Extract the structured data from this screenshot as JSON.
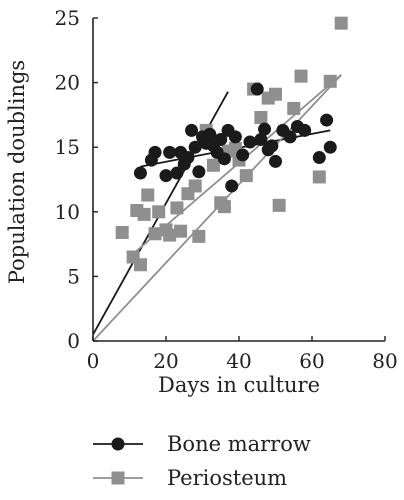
{
  "chart_data": {
    "type": "scatter",
    "title": "",
    "xlabel": "Days in culture",
    "ylabel": "Population doublings",
    "xlim": [
      0,
      80
    ],
    "ylim": [
      0,
      25
    ],
    "x_ticks": [
      0,
      20,
      40,
      60,
      80
    ],
    "y_ticks": [
      0,
      5,
      10,
      15,
      20,
      25
    ],
    "x_tick_labels": [
      "0",
      "20",
      "40",
      "60",
      "80"
    ],
    "y_tick_labels": [
      "0",
      "5",
      "10",
      "15",
      "20",
      "25"
    ],
    "grid": false,
    "legend_position": "bottom",
    "series": [
      {
        "name": "Bone marrow",
        "marker": "circle",
        "color": "#1a1a1a",
        "points": [
          [
            13,
            13.0
          ],
          [
            16,
            14.0
          ],
          [
            17,
            14.6
          ],
          [
            20,
            12.8
          ],
          [
            21,
            14.6
          ],
          [
            23,
            13.0
          ],
          [
            24,
            14.6
          ],
          [
            25,
            13.7
          ],
          [
            26,
            14.2
          ],
          [
            27,
            16.3
          ],
          [
            28,
            15.0
          ],
          [
            29,
            13.1
          ],
          [
            30,
            15.8
          ],
          [
            31,
            15.3
          ],
          [
            32,
            16.0
          ],
          [
            33,
            15.1
          ],
          [
            34,
            14.6
          ],
          [
            35,
            15.6
          ],
          [
            36,
            14.1
          ],
          [
            37,
            16.3
          ],
          [
            38,
            12.0
          ],
          [
            39,
            15.8
          ],
          [
            41,
            14.4
          ],
          [
            43,
            15.4
          ],
          [
            45,
            19.5
          ],
          [
            46,
            15.6
          ],
          [
            47,
            16.4
          ],
          [
            48,
            14.8
          ],
          [
            49,
            15.1
          ],
          [
            50,
            13.9
          ],
          [
            52,
            16.3
          ],
          [
            54,
            15.8
          ],
          [
            56,
            16.6
          ],
          [
            58,
            16.3
          ],
          [
            62,
            14.2
          ],
          [
            64,
            17.1
          ],
          [
            65,
            15.0
          ]
        ],
        "fits": [
          {
            "x": [
              0,
              37
            ],
            "y": [
              0.5,
              19.3
            ]
          },
          {
            "x": [
              13,
              65
            ],
            "y": [
              13.5,
              16.3
            ]
          }
        ]
      },
      {
        "name": "Periosteum",
        "marker": "square",
        "color": "#8f8f8f",
        "points": [
          [
            8,
            8.4
          ],
          [
            11,
            6.5
          ],
          [
            12,
            10.1
          ],
          [
            13,
            5.9
          ],
          [
            14,
            9.8
          ],
          [
            15,
            11.3
          ],
          [
            17,
            8.3
          ],
          [
            18,
            10.0
          ],
          [
            20,
            8.6
          ],
          [
            21,
            8.2
          ],
          [
            23,
            10.3
          ],
          [
            24,
            8.5
          ],
          [
            26,
            11.4
          ],
          [
            28,
            12.0
          ],
          [
            29,
            8.1
          ],
          [
            31,
            16.3
          ],
          [
            32,
            15.4
          ],
          [
            33,
            13.6
          ],
          [
            35,
            10.7
          ],
          [
            36,
            10.4
          ],
          [
            37,
            14.7
          ],
          [
            39,
            14.9
          ],
          [
            40,
            14.0
          ],
          [
            42,
            12.8
          ],
          [
            44,
            19.5
          ],
          [
            46,
            17.3
          ],
          [
            48,
            18.8
          ],
          [
            50,
            19.1
          ],
          [
            51,
            10.5
          ],
          [
            55,
            18.0
          ],
          [
            57,
            20.5
          ],
          [
            62,
            12.7
          ],
          [
            65,
            20.1
          ],
          [
            68,
            24.6
          ]
        ],
        "fits": [
          {
            "x": [
              0,
              68
            ],
            "y": [
              0.0,
              20.6
            ]
          },
          {
            "x": [
              10,
              68
            ],
            "y": [
              6.5,
              20.6
            ]
          }
        ]
      }
    ]
  }
}
